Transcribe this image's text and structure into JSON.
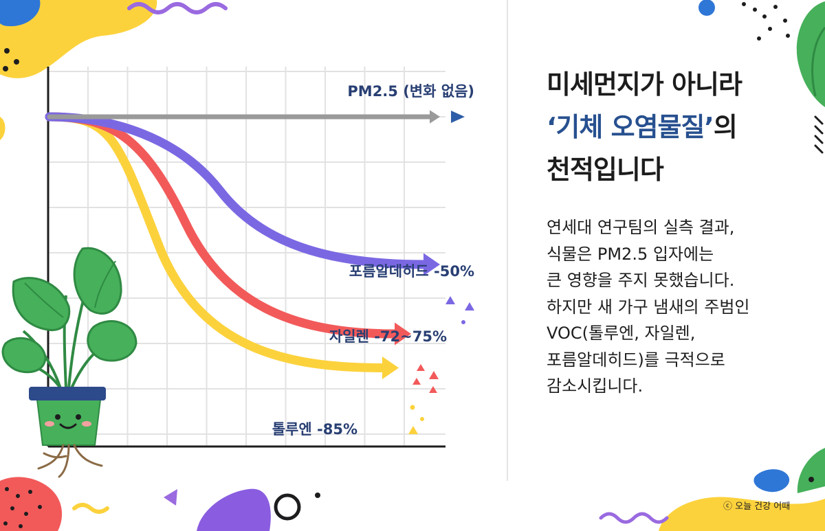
{
  "headline": {
    "line1": "미세먼지가 아니라",
    "line2_accent": "‘기체 오염물질’",
    "line2_rest": "의",
    "line3": "천적입니다"
  },
  "body_lines": [
    "연세대 연구팀의 실측 결과,",
    "식물은 PM2.5 입자에는",
    "큰 영향을 주지 못했습니다.",
    "하지만 새 가구 냄새의 주범인",
    "VOC(톨루엔, 자일렌,",
    "포름알데히드)를 극적으로",
    "감소시킵니다."
  ],
  "credit": "ⓒ 오늘 건강 어때",
  "chart_data": {
    "type": "line",
    "title": "",
    "xlabel": "",
    "ylabel": "",
    "axis_ticks_printed": false,
    "grid": true,
    "ylim": [
      -100,
      0
    ],
    "x": [
      0,
      0.5,
      1
    ],
    "series": [
      {
        "name": "PM2.5 (변화 없음)",
        "values": [
          0,
          0,
          0
        ],
        "color": "#9a9a9a"
      },
      {
        "name": "포름알데히드 -50%",
        "values": [
          0,
          -25,
          -50
        ],
        "color": "#7a68e3"
      },
      {
        "name": "자일렌 -72~75%",
        "values": [
          0,
          -36,
          -73.5
        ],
        "color": "#f25a5a"
      },
      {
        "name": "톨루엔 -85%",
        "values": [
          0,
          -43,
          -85
        ],
        "color": "#fcd23c"
      }
    ]
  }
}
